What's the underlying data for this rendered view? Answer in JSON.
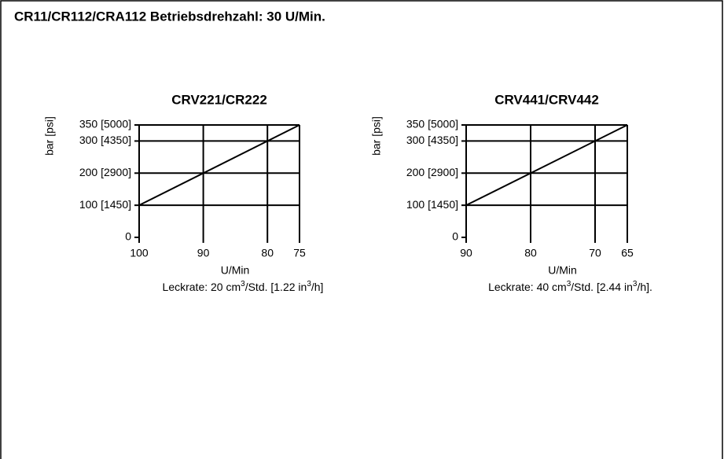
{
  "title": "CR11/CR112/CRA112 Betriebsdrehzahl: 30 U/Min.",
  "chart_data": [
    {
      "type": "line",
      "title": "CRV221/CR222",
      "x_label": "U/Min",
      "y_label": "bar [psi]",
      "note": [
        "Leckrate: 20 cm",
        "3",
        "/Std. [1.22 in",
        "3",
        "/h]"
      ],
      "x": [
        100,
        75
      ],
      "values": [
        100,
        350
      ],
      "color": "#000000",
      "xlim": [
        100,
        75
      ],
      "xticks": [
        100,
        90,
        80,
        75
      ],
      "ylim": [
        0,
        350
      ],
      "yticks": [
        0,
        {
          "value": 100,
          "label": "100 [1450]"
        },
        {
          "value": 200,
          "label": "200 [2900]"
        },
        {
          "value": 300,
          "label": "300 [4350]"
        },
        {
          "value": 350,
          "label": "350 [5000]"
        }
      ],
      "grid": true
    },
    {
      "type": "line",
      "title": "CRV441/CRV442",
      "x_label": "U/Min",
      "y_label": "bar [psi]",
      "note": [
        "Leckrate: 40 cm",
        "3",
        "/Std. [2.44 in",
        "3",
        "/h]."
      ],
      "x": [
        90,
        65
      ],
      "values": [
        100,
        350
      ],
      "color": "#000000",
      "xlim": [
        90,
        65
      ],
      "xticks": [
        90,
        80,
        70,
        65
      ],
      "ylim": [
        0,
        350
      ],
      "yticks": [
        0,
        {
          "value": 100,
          "label": "100 [1450]"
        },
        {
          "value": 200,
          "label": "200 [2900]"
        },
        {
          "value": 300,
          "label": "300 [4350]"
        },
        {
          "value": 350,
          "label": "350 [5000]"
        }
      ],
      "grid": true
    }
  ]
}
